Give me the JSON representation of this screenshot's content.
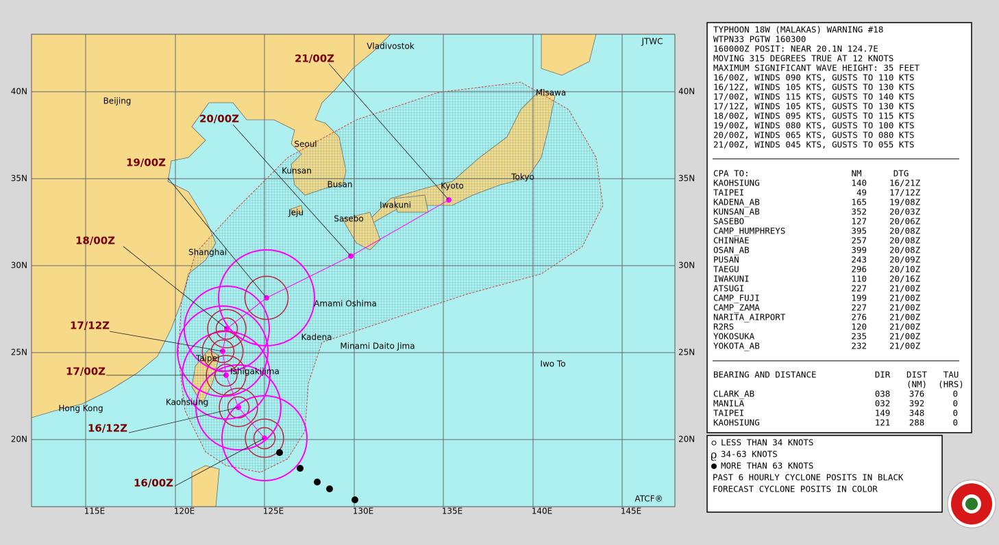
{
  "map": {
    "agency_labels": [
      "JTWC",
      "ATCF®"
    ],
    "lat_labels": [
      "40N",
      "35N",
      "30N",
      "25N",
      "20N"
    ],
    "lon_labels": [
      "115E",
      "120E",
      "125E",
      "130E",
      "135E",
      "140E",
      "145E"
    ],
    "places": [
      "Vladivostok",
      "Beijing",
      "Seoul",
      "Kunsan",
      "Busan",
      "Jeju",
      "Sasebo",
      "Iwakuni",
      "Kyoto",
      "Tokyo",
      "Misawa",
      "Shanghai",
      "Amami Oshima",
      "Kadena",
      "Minami Daito Jima",
      "Iwo To",
      "Taipei",
      "Ishigakijima",
      "Kaohsiung",
      "Hong Kong"
    ],
    "forecast_times": [
      "21/00Z",
      "20/00Z",
      "19/00Z",
      "18/00Z",
      "17/12Z",
      "17/00Z",
      "16/12Z",
      "16/00Z"
    ]
  },
  "warning": {
    "lines": [
      "TYPHOON 18W (MALAKAS) WARNING #18",
      "WTPN33 PGTW 160300",
      "160000Z POSIT: NEAR 20.1N 124.7E",
      "MOVING 315 DEGREES TRUE AT 12 KNOTS",
      "MAXIMUM SIGNIFICANT WAVE HEIGHT: 35 FEET",
      "16/00Z, WINDS 090 KTS, GUSTS TO 110 KTS",
      "16/12Z, WINDS 105 KTS, GUSTS TO 130 KTS",
      "17/00Z, WINDS 115 KTS, GUSTS TO 140 KTS",
      "17/12Z, WINDS 105 KTS, GUSTS TO 130 KTS",
      "18/00Z, WINDS 095 KTS, GUSTS TO 115 KTS",
      "19/00Z, WINDS 080 KTS, GUSTS TO 100 KTS",
      "20/00Z, WINDS 065 KTS, GUSTS TO 080 KTS",
      "21/00Z, WINDS 045 KTS, GUSTS TO 055 KTS"
    ]
  },
  "cpa": {
    "headers": [
      "CPA TO:",
      "NM",
      "DTG"
    ],
    "rows": [
      [
        "KAOHSIUNG",
        140,
        "16/21Z"
      ],
      [
        "TAIPEI",
        49,
        "17/12Z"
      ],
      [
        "KADENA_AB",
        165,
        "19/08Z"
      ],
      [
        "KUNSAN_AB",
        352,
        "20/03Z"
      ],
      [
        "SASEBO",
        127,
        "20/06Z"
      ],
      [
        "CAMP_HUMPHREYS",
        395,
        "20/08Z"
      ],
      [
        "CHINHAE",
        257,
        "20/08Z"
      ],
      [
        "OSAN_AB",
        399,
        "20/08Z"
      ],
      [
        "PUSAN",
        243,
        "20/09Z"
      ],
      [
        "TAEGU",
        296,
        "20/10Z"
      ],
      [
        "IWAKUNI",
        110,
        "20/16Z"
      ],
      [
        "ATSUGI",
        227,
        "21/00Z"
      ],
      [
        "CAMP_FUJI",
        199,
        "21/00Z"
      ],
      [
        "CAMP_ZAMA",
        227,
        "21/00Z"
      ],
      [
        "NARITA_AIRPORT",
        276,
        "21/00Z"
      ],
      [
        "R2RS",
        120,
        "21/00Z"
      ],
      [
        "YOKOSUKA",
        235,
        "21/00Z"
      ],
      [
        "YOKOTA_AB",
        232,
        "21/00Z"
      ]
    ]
  },
  "bearing": {
    "headers": [
      "BEARING AND DISTANCE",
      "DIR",
      "DIST",
      "TAU"
    ],
    "units": [
      "(NM)",
      "(HRS)"
    ],
    "rows": [
      [
        "CLARK_AB",
        "038",
        376,
        0
      ],
      [
        "MANILA",
        "032",
        392,
        0
      ],
      [
        "TAIPEI",
        "149",
        348,
        0
      ],
      [
        "KAOHSIUNG",
        "121",
        288,
        0
      ]
    ]
  },
  "legend": {
    "lines": [
      "LESS THAN 34 KNOTS",
      "34-63 KNOTS",
      "MORE THAN 63 KNOTS",
      "PAST 6 HOURLY CYCLONE POSITS IN BLACK",
      "FORECAST CYCLONE POSITS IN COLOR"
    ]
  }
}
